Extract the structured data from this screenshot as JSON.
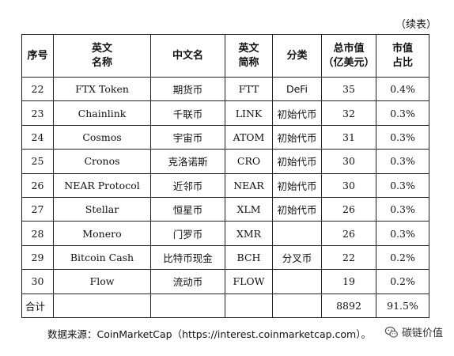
{
  "caption": "（续表）",
  "headers": [
    [
      "序号"
    ],
    [
      "英文",
      "名称"
    ],
    [
      "中文名"
    ],
    [
      "英文",
      "简称"
    ],
    [
      "分类"
    ],
    [
      "总市值",
      "（亿美元）"
    ],
    [
      "市值",
      "占比"
    ]
  ],
  "rows": [
    [
      "22",
      "FTX Token",
      "期货币",
      "FTT",
      "DeFi",
      "35",
      "0.4%"
    ],
    [
      "23",
      "Chainlink",
      "千联币",
      "LINK",
      "初始代币",
      "32",
      "0.3%"
    ],
    [
      "24",
      "Cosmos",
      "宇宙币",
      "ATOM",
      "初始代币",
      "31",
      "0.3%"
    ],
    [
      "25",
      "Cronos",
      "克洛诺斯",
      "CRO",
      "初始代币",
      "30",
      "0.3%"
    ],
    [
      "26",
      "NEAR Protocol",
      "近邻币",
      "NEAR",
      "初始代币",
      "30",
      "0.3%"
    ],
    [
      "27",
      "Stellar",
      "恒星币",
      "XLM",
      "初始代币",
      "26",
      "0.3%"
    ],
    [
      "28",
      "Monero",
      "门罗币",
      "XMR",
      "",
      "26",
      "0.3%"
    ],
    [
      "29",
      "Bitcoin Cash",
      "比特币现金",
      "BCH",
      "分叉币",
      "22",
      "0.2%"
    ],
    [
      "30",
      "Flow",
      "流动币",
      "FLOW",
      "",
      "19",
      "0.2%"
    ]
  ],
  "total": {
    "label": "合计",
    "market_cap": "8892",
    "share": "91.5%"
  },
  "source": "数据来源：CoinMarketCap（https://interest.coinmarketcap.com）。",
  "watermark": {
    "text": "碳链价值",
    "icon": "wechat-icon"
  }
}
